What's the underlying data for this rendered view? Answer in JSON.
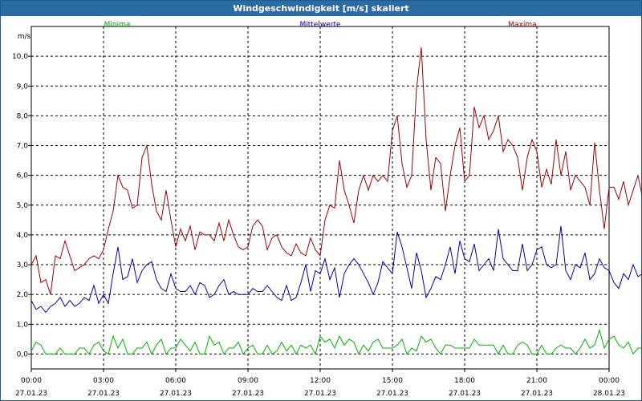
{
  "window": {
    "title": "Windgeschwindigkeit [m/s] skaliert"
  },
  "colors": {
    "min": "#00b000",
    "mean": "#0000b0",
    "max": "#a00000",
    "title_bar": "#2b6ba3",
    "grid": "#000000"
  },
  "chart_data": {
    "type": "line",
    "title": "Windgeschwindigkeit [m/s] skaliert",
    "ylabel": "m/s",
    "ylim": [
      -0.5,
      11
    ],
    "xlim": [
      0,
      24
    ],
    "grid": true,
    "legend_placement": "top",
    "yticks": [
      {
        "v": 0,
        "label": "0,0"
      },
      {
        "v": 1,
        "label": "1,0"
      },
      {
        "v": 2,
        "label": "2,0"
      },
      {
        "v": 3,
        "label": "3,0"
      },
      {
        "v": 4,
        "label": "4,0"
      },
      {
        "v": 5,
        "label": "5,0"
      },
      {
        "v": 6,
        "label": "6,0"
      },
      {
        "v": 7,
        "label": "7,0"
      },
      {
        "v": 8,
        "label": "8,0"
      },
      {
        "v": 9,
        "label": "9,0"
      },
      {
        "v": 10,
        "label": "10,0"
      }
    ],
    "xticks": [
      {
        "v": 0,
        "time": "00:00",
        "date": "27.01.23"
      },
      {
        "v": 3,
        "time": "03:00",
        "date": "27.01.23"
      },
      {
        "v": 6,
        "time": "06:00",
        "date": "27.01.23"
      },
      {
        "v": 9,
        "time": "09:00",
        "date": "27.01.23"
      },
      {
        "v": 12,
        "time": "12:00",
        "date": "27.01.23"
      },
      {
        "v": 15,
        "time": "15:00",
        "date": "27.01.23"
      },
      {
        "v": 18,
        "time": "18:00",
        "date": "27.01.23"
      },
      {
        "v": 21,
        "time": "21:00",
        "date": "27.01.23"
      },
      {
        "v": 24,
        "time": "00:00",
        "date": "28.01.23"
      }
    ],
    "series": [
      {
        "name": "Minima",
        "color": "#00b000",
        "x0": 0,
        "step": 0.2,
        "values": [
          0.1,
          0.4,
          0.3,
          0.0,
          0.0,
          0.0,
          0.2,
          0.0,
          0.0,
          0.0,
          0.2,
          0.2,
          0.0,
          0.3,
          0.4,
          0.1,
          0.0,
          0.6,
          0.2,
          0.5,
          0.0,
          0.0,
          0.2,
          0.2,
          0.4,
          0.0,
          0.3,
          0.5,
          0.0,
          0.2,
          0.2,
          0.5,
          0.3,
          0.1,
          0.4,
          0.0,
          0.0,
          0.6,
          0.3,
          0.4,
          0.0,
          0.2,
          0.2,
          0.4,
          0.0,
          0.2,
          0.3,
          0.0,
          0.0,
          0.3,
          0.0,
          0.1,
          0.4,
          0.1,
          0.3,
          0.0,
          0.3,
          0.2,
          0.3,
          0.0,
          0.6,
          0.4,
          0.5,
          0.2,
          0.6,
          0.3,
          0.5,
          0.4,
          0.0,
          0.3,
          0.1,
          0.4,
          0.5,
          0.2,
          0.2,
          0.2,
          0.3,
          0.5,
          0.0,
          0.2,
          0.1,
          0.6,
          0.4,
          0.5,
          0.2,
          0.0,
          0.3,
          0.3,
          0.2,
          0.2,
          0.2,
          0.2,
          0.5,
          0.3,
          0.3,
          0.3,
          0.3,
          0.0,
          0.3,
          0.0,
          0.0,
          0.3,
          0.4,
          0.3,
          0.0,
          0.0,
          0.3,
          0.0,
          0.0,
          0.2,
          0.3,
          0.2,
          0.2,
          0.0,
          0.2,
          0.5,
          0.2,
          0.3,
          0.8,
          0.2,
          0.5,
          0.6,
          0.3,
          0.2,
          0.4,
          0.0,
          0.2,
          0.2,
          0.3,
          0.3,
          0.0,
          0.2,
          0.5,
          0.3,
          0.3,
          0.3,
          0.2,
          0.4,
          0.1,
          0.0,
          0.3
        ]
      },
      {
        "name": "Mittelwerte",
        "color": "#0000b0",
        "x0": 0,
        "step": 0.2,
        "values": [
          1.8,
          1.5,
          1.6,
          1.4,
          1.6,
          1.7,
          1.9,
          1.6,
          1.8,
          1.6,
          1.7,
          1.9,
          1.8,
          2.3,
          1.7,
          2.0,
          1.7,
          2.7,
          3.6,
          2.5,
          2.6,
          3.2,
          2.4,
          2.8,
          3.0,
          3.1,
          2.5,
          2.2,
          2.1,
          2.7,
          2.2,
          2.1,
          2.1,
          2.3,
          2.0,
          2.4,
          2.3,
          1.9,
          2.0,
          2.3,
          2.5,
          2.0,
          2.1,
          2.0,
          2.0,
          2.0,
          2.2,
          2.1,
          2.1,
          2.3,
          2.1,
          1.9,
          1.8,
          2.3,
          1.8,
          1.9,
          2.4,
          3.0,
          2.1,
          2.8,
          2.7,
          3.2,
          2.5,
          2.9,
          1.9,
          2.7,
          3.0,
          3.2,
          3.0,
          2.7,
          2.4,
          2.0,
          2.4,
          3.1,
          2.9,
          2.7,
          4.1,
          3.6,
          2.9,
          2.2,
          3.4,
          2.8,
          1.9,
          2.2,
          2.6,
          2.5,
          3.0,
          3.6,
          2.7,
          3.8,
          3.2,
          3.1,
          3.7,
          2.8,
          3.0,
          3.2,
          2.8,
          4.2,
          3.2,
          3.0,
          2.8,
          2.8,
          3.7,
          2.8,
          3.0,
          3.5,
          3.6,
          3.0,
          2.9,
          3.0,
          4.3,
          2.8,
          2.5,
          3.0,
          2.9,
          3.4,
          2.5,
          2.7,
          3.2,
          2.9,
          2.8,
          2.4,
          2.2,
          2.7,
          2.5,
          3.0,
          2.6,
          2.7,
          2.1,
          3.0,
          2.5,
          2.3,
          2.5,
          2.6,
          2.9,
          2.7,
          2.6,
          2.3,
          2.5,
          2.1,
          1.8,
          2.5,
          2.3,
          2.6,
          2.9,
          2.6,
          2.3,
          2.3,
          2.8,
          2.5,
          2.3
        ]
      },
      {
        "name": "Maxima",
        "color": "#a00000",
        "x0": 0,
        "step": 0.2,
        "values": [
          3.0,
          3.3,
          2.4,
          2.5,
          2.0,
          3.3,
          3.2,
          3.8,
          3.3,
          2.8,
          2.9,
          3.0,
          3.2,
          3.3,
          3.2,
          3.5,
          4.2,
          4.8,
          6.0,
          5.6,
          5.5,
          4.9,
          5.0,
          6.6,
          7.0,
          5.7,
          4.8,
          4.5,
          5.5,
          4.5,
          3.6,
          4.2,
          3.8,
          4.3,
          3.5,
          4.1,
          4.0,
          4.0,
          3.8,
          4.4,
          3.8,
          4.5,
          4.0,
          3.6,
          3.5,
          3.6,
          4.3,
          4.5,
          4.3,
          3.5,
          3.9,
          4.0,
          3.6,
          3.4,
          3.3,
          3.7,
          3.4,
          3.3,
          3.9,
          3.5,
          3.3,
          4.5,
          5.0,
          4.9,
          6.5,
          5.5,
          5.0,
          4.4,
          5.5,
          6.0,
          5.5,
          6.0,
          5.8,
          6.0,
          5.8,
          7.5,
          8.0,
          6.4,
          5.6,
          6.0,
          8.9,
          10.3,
          7.2,
          5.5,
          6.6,
          6.4,
          4.8,
          6.0,
          7.0,
          7.6,
          5.8,
          6.0,
          8.3,
          7.6,
          8.0,
          7.2,
          7.5,
          8.0,
          6.8,
          7.2,
          7.0,
          6.6,
          5.5,
          6.6,
          7.2,
          6.8,
          5.6,
          6.2,
          5.7,
          7.2,
          6.0,
          6.8,
          5.5,
          6.0,
          5.8,
          5.6,
          5.0,
          7.1,
          5.5,
          4.2,
          5.6,
          5.6,
          5.2,
          5.8,
          5.0,
          5.5,
          6.0,
          5.2,
          4.7,
          5.5,
          4.5,
          3.8,
          4.4,
          4.5,
          4.2,
          4.0,
          3.8,
          3.5,
          4.2,
          3.3,
          4.5,
          5.5,
          5.0,
          6.0,
          4.5,
          5.5,
          6.5,
          5.5,
          5.0,
          6.0,
          5.5,
          5.0,
          4.6,
          3.4
        ]
      }
    ]
  }
}
